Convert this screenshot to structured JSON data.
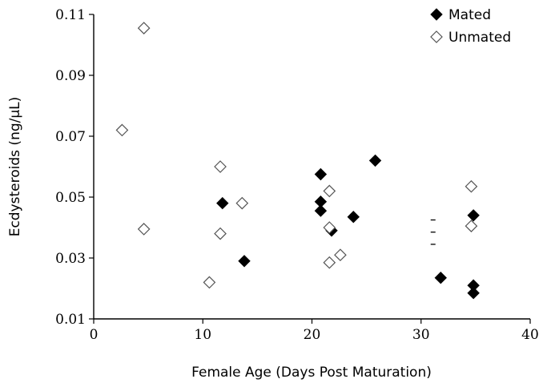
{
  "chart_data": {
    "type": "scatter",
    "xlabel": "Female Age (Days Post Maturation)",
    "ylabel": "Ecdysteroids (ng/µL)",
    "xlim": [
      0,
      40
    ],
    "ylim": [
      0.01,
      0.11
    ],
    "x_ticks": [
      "0",
      "10",
      "20",
      "30",
      "40"
    ],
    "x_tick_values": [
      0,
      10,
      20,
      30,
      40
    ],
    "y_ticks": [
      "0.01",
      "0.03",
      "0.05",
      "0.07",
      "0.09",
      "0.11"
    ],
    "y_tick_values": [
      0.01,
      0.03,
      0.05,
      0.07,
      0.09,
      0.11
    ],
    "grid": false,
    "legend_position": "top-right",
    "series": [
      {
        "name": "Mated",
        "marker": "filled-diamond",
        "color": "#000000",
        "points": [
          {
            "x": 11.8,
            "y": 0.048
          },
          {
            "x": 13.8,
            "y": 0.029
          },
          {
            "x": 20.8,
            "y": 0.0575
          },
          {
            "x": 20.8,
            "y": 0.0485
          },
          {
            "x": 20.8,
            "y": 0.0455
          },
          {
            "x": 21.8,
            "y": 0.039
          },
          {
            "x": 23.8,
            "y": 0.0435
          },
          {
            "x": 25.8,
            "y": 0.062
          },
          {
            "x": 31.8,
            "y": 0.0235
          },
          {
            "x": 34.8,
            "y": 0.044
          },
          {
            "x": 34.8,
            "y": 0.021
          },
          {
            "x": 34.8,
            "y": 0.0185
          }
        ]
      },
      {
        "name": "Unmated",
        "marker": "open-diamond",
        "color": "#000000",
        "points": [
          {
            "x": 2.6,
            "y": 0.072
          },
          {
            "x": 4.6,
            "y": 0.1055
          },
          {
            "x": 4.6,
            "y": 0.0395
          },
          {
            "x": 10.6,
            "y": 0.022
          },
          {
            "x": 11.6,
            "y": 0.06
          },
          {
            "x": 11.6,
            "y": 0.038
          },
          {
            "x": 13.6,
            "y": 0.048
          },
          {
            "x": 21.6,
            "y": 0.052
          },
          {
            "x": 21.6,
            "y": 0.04
          },
          {
            "x": 21.6,
            "y": 0.0285
          },
          {
            "x": 22.6,
            "y": 0.031
          },
          {
            "x": 34.6,
            "y": 0.0535
          },
          {
            "x": 34.6,
            "y": 0.0405
          }
        ]
      }
    ],
    "annotations": [
      {
        "type": "dash",
        "x": 31.1,
        "y": 0.0425
      },
      {
        "type": "dash",
        "x": 31.1,
        "y": 0.0385
      },
      {
        "type": "dash",
        "x": 31.1,
        "y": 0.0345
      }
    ]
  }
}
